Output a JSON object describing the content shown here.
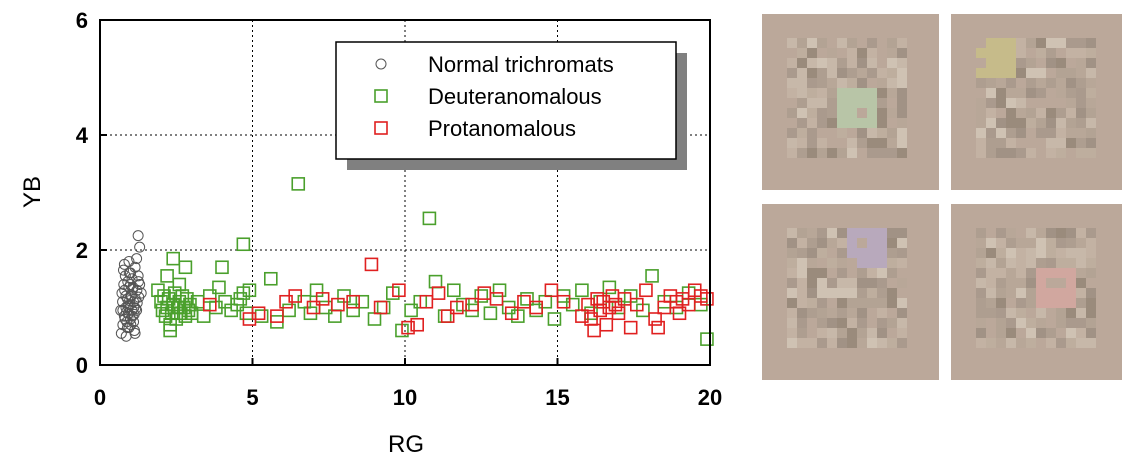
{
  "chart_data": {
    "type": "scatter",
    "xlabel": "RG",
    "ylabel": "YB",
    "xlim": [
      0,
      20
    ],
    "ylim": [
      0,
      6
    ],
    "xticks": [
      0,
      5,
      10,
      15,
      20
    ],
    "yticks": [
      0,
      2,
      4,
      6
    ],
    "grid": "dotted",
    "legend": "top-right",
    "series": [
      {
        "name": "Normal trichromats",
        "marker": "circle",
        "color": "#555555",
        "points": [
          [
            0.7,
            0.55
          ],
          [
            0.75,
            0.7
          ],
          [
            0.8,
            0.85
          ],
          [
            0.85,
            1.0
          ],
          [
            0.9,
            1.15
          ],
          [
            0.95,
            0.65
          ],
          [
            1.0,
            0.8
          ],
          [
            1.05,
            0.95
          ],
          [
            1.1,
            1.1
          ],
          [
            0.72,
            1.25
          ],
          [
            0.78,
            1.4
          ],
          [
            0.83,
            1.55
          ],
          [
            0.88,
            0.75
          ],
          [
            0.93,
            0.9
          ],
          [
            0.98,
            1.05
          ],
          [
            1.03,
            1.2
          ],
          [
            1.08,
            1.35
          ],
          [
            1.13,
            0.6
          ],
          [
            0.68,
            0.95
          ],
          [
            0.74,
            1.1
          ],
          [
            0.81,
            1.3
          ],
          [
            0.86,
            0.5
          ],
          [
            0.91,
            1.45
          ],
          [
            0.96,
            1.6
          ],
          [
            1.01,
            0.7
          ],
          [
            1.06,
            0.85
          ],
          [
            1.11,
            1.0
          ],
          [
            1.16,
            1.15
          ],
          [
            1.21,
            1.3
          ],
          [
            1.26,
            1.45
          ],
          [
            0.77,
            1.65
          ],
          [
            0.82,
            0.8
          ],
          [
            0.87,
            0.92
          ],
          [
            0.92,
            1.02
          ],
          [
            0.97,
            1.12
          ],
          [
            1.02,
            1.22
          ],
          [
            1.07,
            1.32
          ],
          [
            1.12,
            0.88
          ],
          [
            1.17,
            0.98
          ],
          [
            1.22,
            1.08
          ],
          [
            1.27,
            1.18
          ],
          [
            0.8,
            1.75
          ],
          [
            1.15,
            1.7
          ],
          [
            1.25,
            1.55
          ],
          [
            1.3,
            1.4
          ],
          [
            1.05,
            1.5
          ],
          [
            1.2,
            1.85
          ],
          [
            1.3,
            2.05
          ],
          [
            1.25,
            2.25
          ],
          [
            0.95,
            1.35
          ],
          [
            0.9,
            0.65
          ],
          [
            1.0,
            1.4
          ],
          [
            1.1,
            0.75
          ],
          [
            0.85,
            1.2
          ],
          [
            1.35,
            1.25
          ],
          [
            1.15,
            0.55
          ],
          [
            0.75,
            0.95
          ],
          [
            1.0,
            1.6
          ],
          [
            1.2,
            0.95
          ],
          [
            0.95,
            1.8
          ]
        ]
      },
      {
        "name": "Deuteranomalous",
        "marker": "square",
        "color": "#4aa02c",
        "points": [
          [
            1.9,
            1.3
          ],
          [
            2.0,
            1.1
          ],
          [
            2.05,
            0.95
          ],
          [
            2.1,
            1.2
          ],
          [
            2.15,
            0.85
          ],
          [
            2.2,
            1.0
          ],
          [
            2.25,
            1.15
          ],
          [
            2.3,
            0.7
          ],
          [
            2.35,
            0.9
          ],
          [
            2.4,
            1.05
          ],
          [
            2.45,
            1.25
          ],
          [
            2.5,
            0.8
          ],
          [
            2.55,
            1.0
          ],
          [
            2.6,
            1.1
          ],
          [
            2.65,
            0.9
          ],
          [
            2.7,
            1.2
          ],
          [
            2.75,
            1.0
          ],
          [
            2.8,
            0.85
          ],
          [
            2.85,
            1.15
          ],
          [
            2.9,
            0.95
          ],
          [
            2.95,
            1.05
          ],
          [
            3.0,
            0.9
          ],
          [
            2.4,
            1.85
          ],
          [
            2.8,
            1.7
          ],
          [
            2.2,
            1.55
          ],
          [
            2.3,
            0.6
          ],
          [
            2.6,
            1.4
          ],
          [
            3.2,
            1.1
          ],
          [
            3.4,
            0.85
          ],
          [
            3.6,
            1.2
          ],
          [
            3.8,
            1.0
          ],
          [
            3.9,
            1.35
          ],
          [
            4.0,
            1.7
          ],
          [
            4.1,
            1.1
          ],
          [
            4.3,
            0.95
          ],
          [
            4.5,
            1.05
          ],
          [
            4.6,
            1.15
          ],
          [
            4.7,
            1.25
          ],
          [
            4.8,
            0.9
          ],
          [
            4.9,
            1.3
          ],
          [
            4.7,
            2.1
          ],
          [
            5.3,
            0.85
          ],
          [
            5.6,
            1.5
          ],
          [
            5.8,
            0.75
          ],
          [
            6.2,
            0.95
          ],
          [
            6.5,
            3.15
          ],
          [
            6.7,
            1.1
          ],
          [
            6.9,
            0.9
          ],
          [
            7.1,
            1.3
          ],
          [
            7.4,
            1.0
          ],
          [
            7.7,
            0.85
          ],
          [
            8.0,
            1.2
          ],
          [
            8.3,
            0.95
          ],
          [
            8.6,
            1.1
          ],
          [
            9.0,
            0.8
          ],
          [
            9.3,
            1.0
          ],
          [
            9.6,
            1.25
          ],
          [
            9.9,
            0.6
          ],
          [
            10.2,
            0.95
          ],
          [
            10.5,
            1.1
          ],
          [
            10.8,
            2.55
          ],
          [
            11.0,
            1.45
          ],
          [
            11.3,
            0.85
          ],
          [
            11.6,
            1.3
          ],
          [
            11.9,
            1.05
          ],
          [
            12.2,
            0.95
          ],
          [
            12.5,
            1.2
          ],
          [
            12.8,
            0.9
          ],
          [
            13.1,
            1.3
          ],
          [
            13.4,
            1.0
          ],
          [
            13.7,
            0.85
          ],
          [
            14.0,
            1.15
          ],
          [
            14.3,
            0.95
          ],
          [
            14.6,
            1.1
          ],
          [
            14.9,
            0.8
          ],
          [
            15.2,
            1.2
          ],
          [
            15.5,
            1.05
          ],
          [
            15.8,
            1.3
          ],
          [
            16.1,
            0.9
          ],
          [
            16.4,
            1.1
          ],
          [
            16.7,
            1.35
          ],
          [
            17.0,
            1.0
          ],
          [
            17.4,
            1.2
          ],
          [
            17.8,
            0.95
          ],
          [
            18.1,
            1.55
          ],
          [
            18.5,
            1.1
          ],
          [
            18.9,
            1.0
          ],
          [
            19.3,
            1.25
          ],
          [
            19.7,
            1.05
          ],
          [
            19.9,
            0.45
          ]
        ]
      },
      {
        "name": "Protanomalous",
        "marker": "square",
        "color": "#e02020",
        "points": [
          [
            3.6,
            1.05
          ],
          [
            4.9,
            0.8
          ],
          [
            5.2,
            0.9
          ],
          [
            5.8,
            0.85
          ],
          [
            6.1,
            1.1
          ],
          [
            6.4,
            1.2
          ],
          [
            7.0,
            1.0
          ],
          [
            7.3,
            1.15
          ],
          [
            7.8,
            1.05
          ],
          [
            8.3,
            1.1
          ],
          [
            8.9,
            1.75
          ],
          [
            9.2,
            1.0
          ],
          [
            9.8,
            1.3
          ],
          [
            10.1,
            0.65
          ],
          [
            10.4,
            0.7
          ],
          [
            10.7,
            1.1
          ],
          [
            11.1,
            1.25
          ],
          [
            11.4,
            0.85
          ],
          [
            11.7,
            1.0
          ],
          [
            12.2,
            1.05
          ],
          [
            12.6,
            1.25
          ],
          [
            13.0,
            1.15
          ],
          [
            13.5,
            0.9
          ],
          [
            13.9,
            1.1
          ],
          [
            14.3,
            1.0
          ],
          [
            14.8,
            1.3
          ],
          [
            15.2,
            1.1
          ],
          [
            15.8,
            0.85
          ],
          [
            16.0,
            1.05
          ],
          [
            16.1,
            0.8
          ],
          [
            16.2,
            0.6
          ],
          [
            16.3,
            1.15
          ],
          [
            16.4,
            0.95
          ],
          [
            16.5,
            1.1
          ],
          [
            16.6,
            0.7
          ],
          [
            16.7,
            1.0
          ],
          [
            16.8,
            1.2
          ],
          [
            17.0,
            0.9
          ],
          [
            17.2,
            1.15
          ],
          [
            17.4,
            0.65
          ],
          [
            17.6,
            1.05
          ],
          [
            17.9,
            1.3
          ],
          [
            18.2,
            0.8
          ],
          [
            18.3,
            0.65
          ],
          [
            18.5,
            1.0
          ],
          [
            18.7,
            1.2
          ],
          [
            18.9,
            1.1
          ],
          [
            19.1,
            1.15
          ],
          [
            19.3,
            1.05
          ],
          [
            19.5,
            1.3
          ],
          [
            19.7,
            1.2
          ],
          [
            19.9,
            1.15
          ],
          [
            19.0,
            0.9
          ],
          [
            16.9,
            1.05
          ]
        ]
      }
    ]
  },
  "panels": [
    {
      "patch_color": "#b8c8a8"
    },
    {
      "patch_color": "#c8bc88"
    },
    {
      "patch_color": "#b8a8c0"
    },
    {
      "patch_color": "#d4a6a0"
    }
  ],
  "panel_background": "#bba89a"
}
